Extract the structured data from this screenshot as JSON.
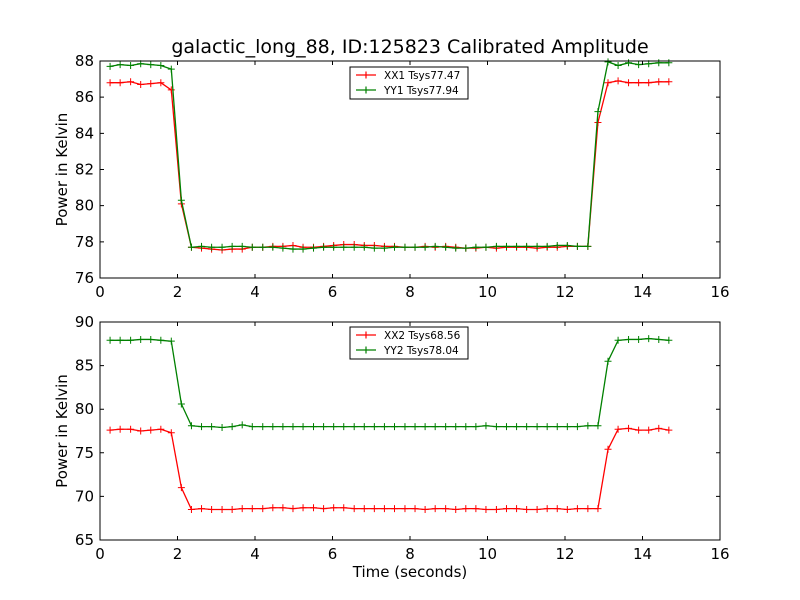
{
  "figure": {
    "title": "galactic_long_88, ID:125823 Calibrated Amplitude"
  },
  "chart_data": [
    {
      "type": "line",
      "title": "galactic_long_88, ID:125823 Calibrated Amplitude",
      "xlabel": "",
      "ylabel": "Power in Kelvin",
      "xlim": [
        0,
        16
      ],
      "ylim": [
        76,
        88
      ],
      "xticks": [
        0,
        2,
        4,
        6,
        8,
        10,
        12,
        14,
        16
      ],
      "yticks": [
        76,
        78,
        80,
        82,
        84,
        86,
        88
      ],
      "x": [
        0.26,
        0.52,
        0.79,
        1.05,
        1.31,
        1.57,
        1.84,
        2.1,
        2.36,
        2.62,
        2.88,
        3.15,
        3.41,
        3.67,
        3.93,
        4.2,
        4.46,
        4.72,
        4.98,
        5.24,
        5.51,
        5.77,
        6.03,
        6.29,
        6.56,
        6.82,
        7.08,
        7.34,
        7.6,
        7.87,
        8.13,
        8.39,
        8.65,
        8.92,
        9.18,
        9.44,
        9.7,
        9.96,
        10.23,
        10.49,
        10.75,
        11.01,
        11.28,
        11.54,
        11.8,
        12.06,
        12.32,
        12.59,
        12.85,
        13.11,
        13.37,
        13.64,
        13.9,
        14.16,
        14.42,
        14.68
      ],
      "series": [
        {
          "name": "XX1 Tsys77.47",
          "color": "#ff0000",
          "values": [
            86.8,
            86.8,
            86.85,
            86.7,
            86.75,
            86.8,
            86.4,
            80.1,
            77.7,
            77.65,
            77.6,
            77.55,
            77.6,
            77.6,
            77.7,
            77.7,
            77.75,
            77.75,
            77.8,
            77.7,
            77.7,
            77.75,
            77.8,
            77.85,
            77.85,
            77.8,
            77.8,
            77.75,
            77.75,
            77.7,
            77.7,
            77.75,
            77.7,
            77.75,
            77.7,
            77.65,
            77.65,
            77.7,
            77.65,
            77.7,
            77.7,
            77.7,
            77.65,
            77.7,
            77.7,
            77.75,
            77.75,
            77.75,
            84.6,
            86.8,
            86.9,
            86.8,
            86.8,
            86.8,
            86.85,
            86.85
          ]
        },
        {
          "name": "YY1 Tsys77.94",
          "color": "#008000",
          "values": [
            87.7,
            87.8,
            87.75,
            87.85,
            87.8,
            87.75,
            87.55,
            80.3,
            77.7,
            77.75,
            77.7,
            77.7,
            77.75,
            77.75,
            77.7,
            77.7,
            77.7,
            77.65,
            77.6,
            77.6,
            77.65,
            77.7,
            77.7,
            77.7,
            77.7,
            77.7,
            77.65,
            77.65,
            77.7,
            77.7,
            77.7,
            77.7,
            77.75,
            77.7,
            77.65,
            77.65,
            77.7,
            77.7,
            77.75,
            77.75,
            77.75,
            77.75,
            77.75,
            77.75,
            77.8,
            77.8,
            77.75,
            77.75,
            85.2,
            87.95,
            87.75,
            87.9,
            87.8,
            87.85,
            87.9,
            87.9
          ]
        }
      ],
      "legend": "top-center",
      "grid": false
    },
    {
      "type": "line",
      "title": "",
      "xlabel": "Time (seconds)",
      "ylabel": "Power in Kelvin",
      "xlim": [
        0,
        16
      ],
      "ylim": [
        65,
        90
      ],
      "xticks": [
        0,
        2,
        4,
        6,
        8,
        10,
        12,
        14,
        16
      ],
      "yticks": [
        65,
        70,
        75,
        80,
        85,
        90
      ],
      "x": [
        0.26,
        0.52,
        0.79,
        1.05,
        1.31,
        1.57,
        1.84,
        2.1,
        2.36,
        2.62,
        2.88,
        3.15,
        3.41,
        3.67,
        3.93,
        4.2,
        4.46,
        4.72,
        4.98,
        5.24,
        5.51,
        5.77,
        6.03,
        6.29,
        6.56,
        6.82,
        7.08,
        7.34,
        7.6,
        7.87,
        8.13,
        8.39,
        8.65,
        8.92,
        9.18,
        9.44,
        9.7,
        9.96,
        10.23,
        10.49,
        10.75,
        11.01,
        11.28,
        11.54,
        11.8,
        12.06,
        12.32,
        12.59,
        12.85,
        13.11,
        13.37,
        13.64,
        13.9,
        14.16,
        14.42,
        14.68
      ],
      "series": [
        {
          "name": "XX2 Tsys68.56",
          "color": "#ff0000",
          "values": [
            77.6,
            77.7,
            77.7,
            77.5,
            77.6,
            77.7,
            77.3,
            71.0,
            68.5,
            68.6,
            68.5,
            68.5,
            68.5,
            68.6,
            68.6,
            68.6,
            68.7,
            68.7,
            68.6,
            68.7,
            68.7,
            68.6,
            68.7,
            68.7,
            68.6,
            68.6,
            68.6,
            68.6,
            68.6,
            68.6,
            68.6,
            68.5,
            68.6,
            68.6,
            68.5,
            68.6,
            68.6,
            68.5,
            68.5,
            68.6,
            68.6,
            68.5,
            68.5,
            68.6,
            68.6,
            68.5,
            68.6,
            68.6,
            68.6,
            75.4,
            77.7,
            77.8,
            77.6,
            77.6,
            77.8,
            77.6
          ]
        },
        {
          "name": "YY2 Tsys78.04",
          "color": "#008000",
          "values": [
            87.9,
            87.9,
            87.9,
            88.0,
            88.0,
            87.9,
            87.8,
            80.6,
            78.1,
            78.0,
            78.0,
            77.9,
            78.0,
            78.2,
            78.0,
            78.0,
            78.0,
            78.0,
            78.0,
            78.0,
            78.0,
            78.0,
            78.0,
            78.0,
            78.0,
            78.0,
            78.0,
            78.0,
            78.0,
            78.0,
            78.0,
            78.0,
            78.0,
            78.0,
            78.0,
            78.0,
            78.0,
            78.1,
            78.0,
            78.0,
            78.0,
            78.0,
            78.0,
            78.0,
            78.0,
            78.0,
            78.0,
            78.1,
            78.1,
            85.5,
            87.9,
            88.0,
            88.0,
            88.1,
            88.0,
            87.9
          ]
        }
      ],
      "legend": "top-center",
      "grid": false
    }
  ]
}
